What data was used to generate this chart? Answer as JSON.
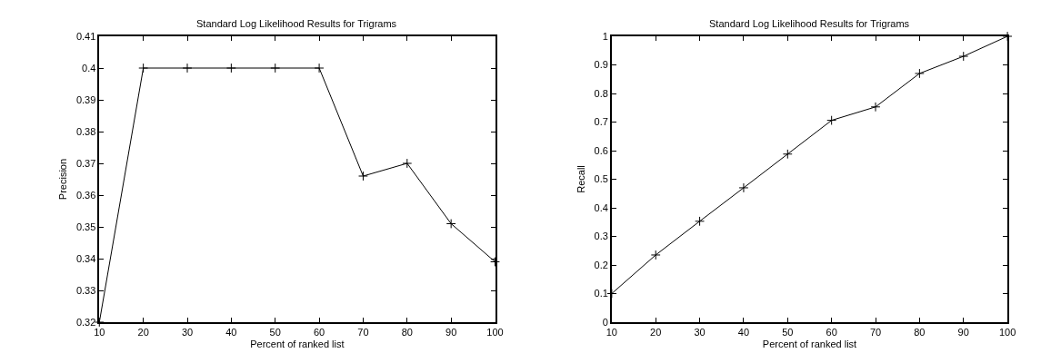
{
  "chart_data": [
    {
      "type": "line",
      "title": "Standard Log Likelihood Results for Trigrams",
      "xlabel": "Percent of ranked list",
      "ylabel": "Precision",
      "x": [
        10,
        20,
        30,
        40,
        50,
        60,
        70,
        80,
        90,
        100
      ],
      "series": [
        {
          "color": "#000000",
          "values": [
            0.32,
            0.4,
            0.4,
            0.4,
            0.4,
            0.4,
            0.366,
            0.37,
            0.351,
            0.339
          ]
        }
      ],
      "xlim": [
        10,
        100
      ],
      "xticks": [
        10,
        20,
        30,
        40,
        50,
        60,
        70,
        80,
        90,
        100
      ],
      "ylim": [
        0.32,
        0.41
      ],
      "yticks": [
        0.32,
        0.33,
        0.34,
        0.35,
        0.36,
        0.37,
        0.38,
        0.39,
        0.4,
        0.41
      ],
      "marker": "cross",
      "line_style": "solid"
    },
    {
      "type": "line",
      "title": "Standard Log Likelihood Results for Trigrams",
      "xlabel": "Percent of ranked list",
      "ylabel": "Recall",
      "x": [
        10,
        20,
        30,
        40,
        50,
        60,
        70,
        80,
        90,
        100
      ],
      "series": [
        {
          "color": "#000000",
          "values": [
            0.1,
            0.235,
            0.353,
            0.47,
            0.588,
            0.706,
            0.753,
            0.87,
            0.93,
            1.0
          ]
        }
      ],
      "xlim": [
        10,
        100
      ],
      "xticks": [
        10,
        20,
        30,
        40,
        50,
        60,
        70,
        80,
        90,
        100
      ],
      "ylim": [
        0,
        1
      ],
      "yticks": [
        0,
        0.1,
        0.2,
        0.3,
        0.4,
        0.5,
        0.6,
        0.7,
        0.8,
        0.9,
        1
      ],
      "marker": "cross",
      "line_style": "solid"
    }
  ]
}
